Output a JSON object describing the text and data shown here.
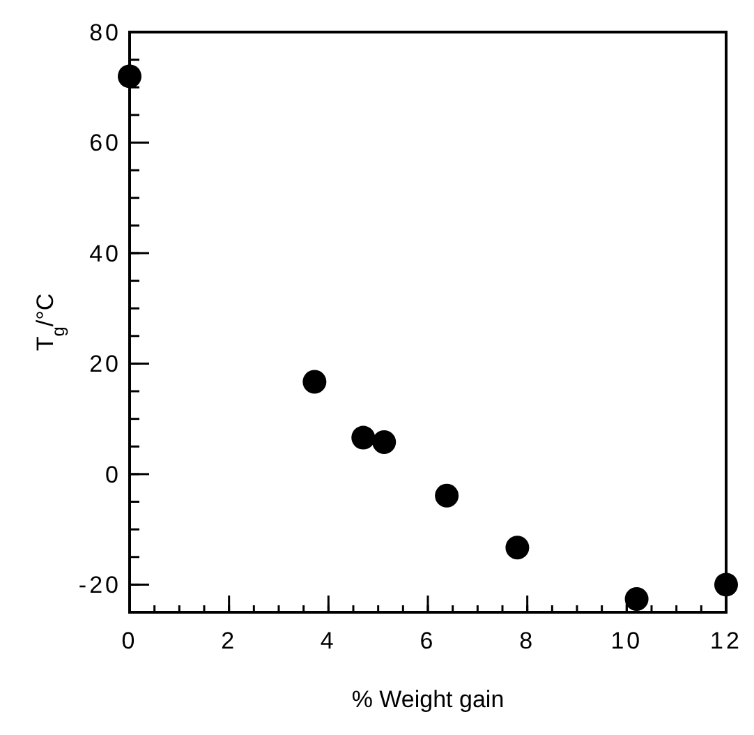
{
  "chart_data": {
    "type": "scatter",
    "xlabel": "% Weight gain",
    "ylabel": "T$_{g}$/°C",
    "x": [
      0,
      3.72,
      4.7,
      5.12,
      6.38,
      7.8,
      10.2,
      12
    ],
    "values": [
      72,
      16.7,
      6.6,
      5.8,
      -3.9,
      -13.3,
      -22.6,
      -20
    ],
    "color": "#000000",
    "marker": "circle",
    "xlim": [
      0,
      12
    ],
    "xticks": [
      0,
      2,
      4,
      6,
      8,
      10,
      12
    ],
    "ylim": [
      -25,
      80
    ],
    "yticks": [
      -20,
      0,
      20,
      40,
      60,
      80
    ],
    "grid": false
  }
}
